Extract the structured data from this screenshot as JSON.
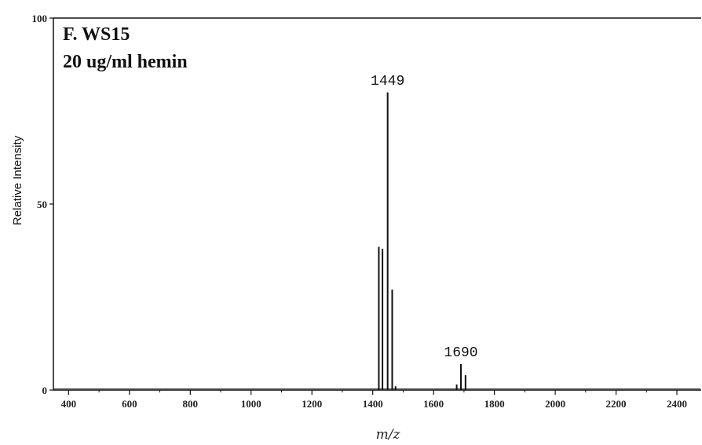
{
  "chart_data": {
    "type": "bar",
    "title": "F. WS15",
    "subtitle": "20 ug/ml hemin",
    "xlabel": "m/z",
    "ylabel": "Relative Intensity",
    "xlim": [
      350,
      2480
    ],
    "ylim": [
      0,
      100
    ],
    "x_ticks": [
      400,
      600,
      800,
      1000,
      1200,
      1400,
      1600,
      1800,
      2000,
      2200,
      2400
    ],
    "y_ticks": [
      0,
      50,
      100
    ],
    "peaks": [
      {
        "mz": 1420,
        "intensity": 38.5
      },
      {
        "mz": 1432,
        "intensity": 38
      },
      {
        "mz": 1449,
        "intensity": 80
      },
      {
        "mz": 1464,
        "intensity": 27
      },
      {
        "mz": 1475,
        "intensity": 1
      },
      {
        "mz": 1676,
        "intensity": 1.5
      },
      {
        "mz": 1690,
        "intensity": 7
      },
      {
        "mz": 1705,
        "intensity": 4
      }
    ],
    "annotations": [
      {
        "text": "1449",
        "mz": 1449
      },
      {
        "text": "1690",
        "mz": 1690
      }
    ],
    "grid": false,
    "legend": "none"
  }
}
